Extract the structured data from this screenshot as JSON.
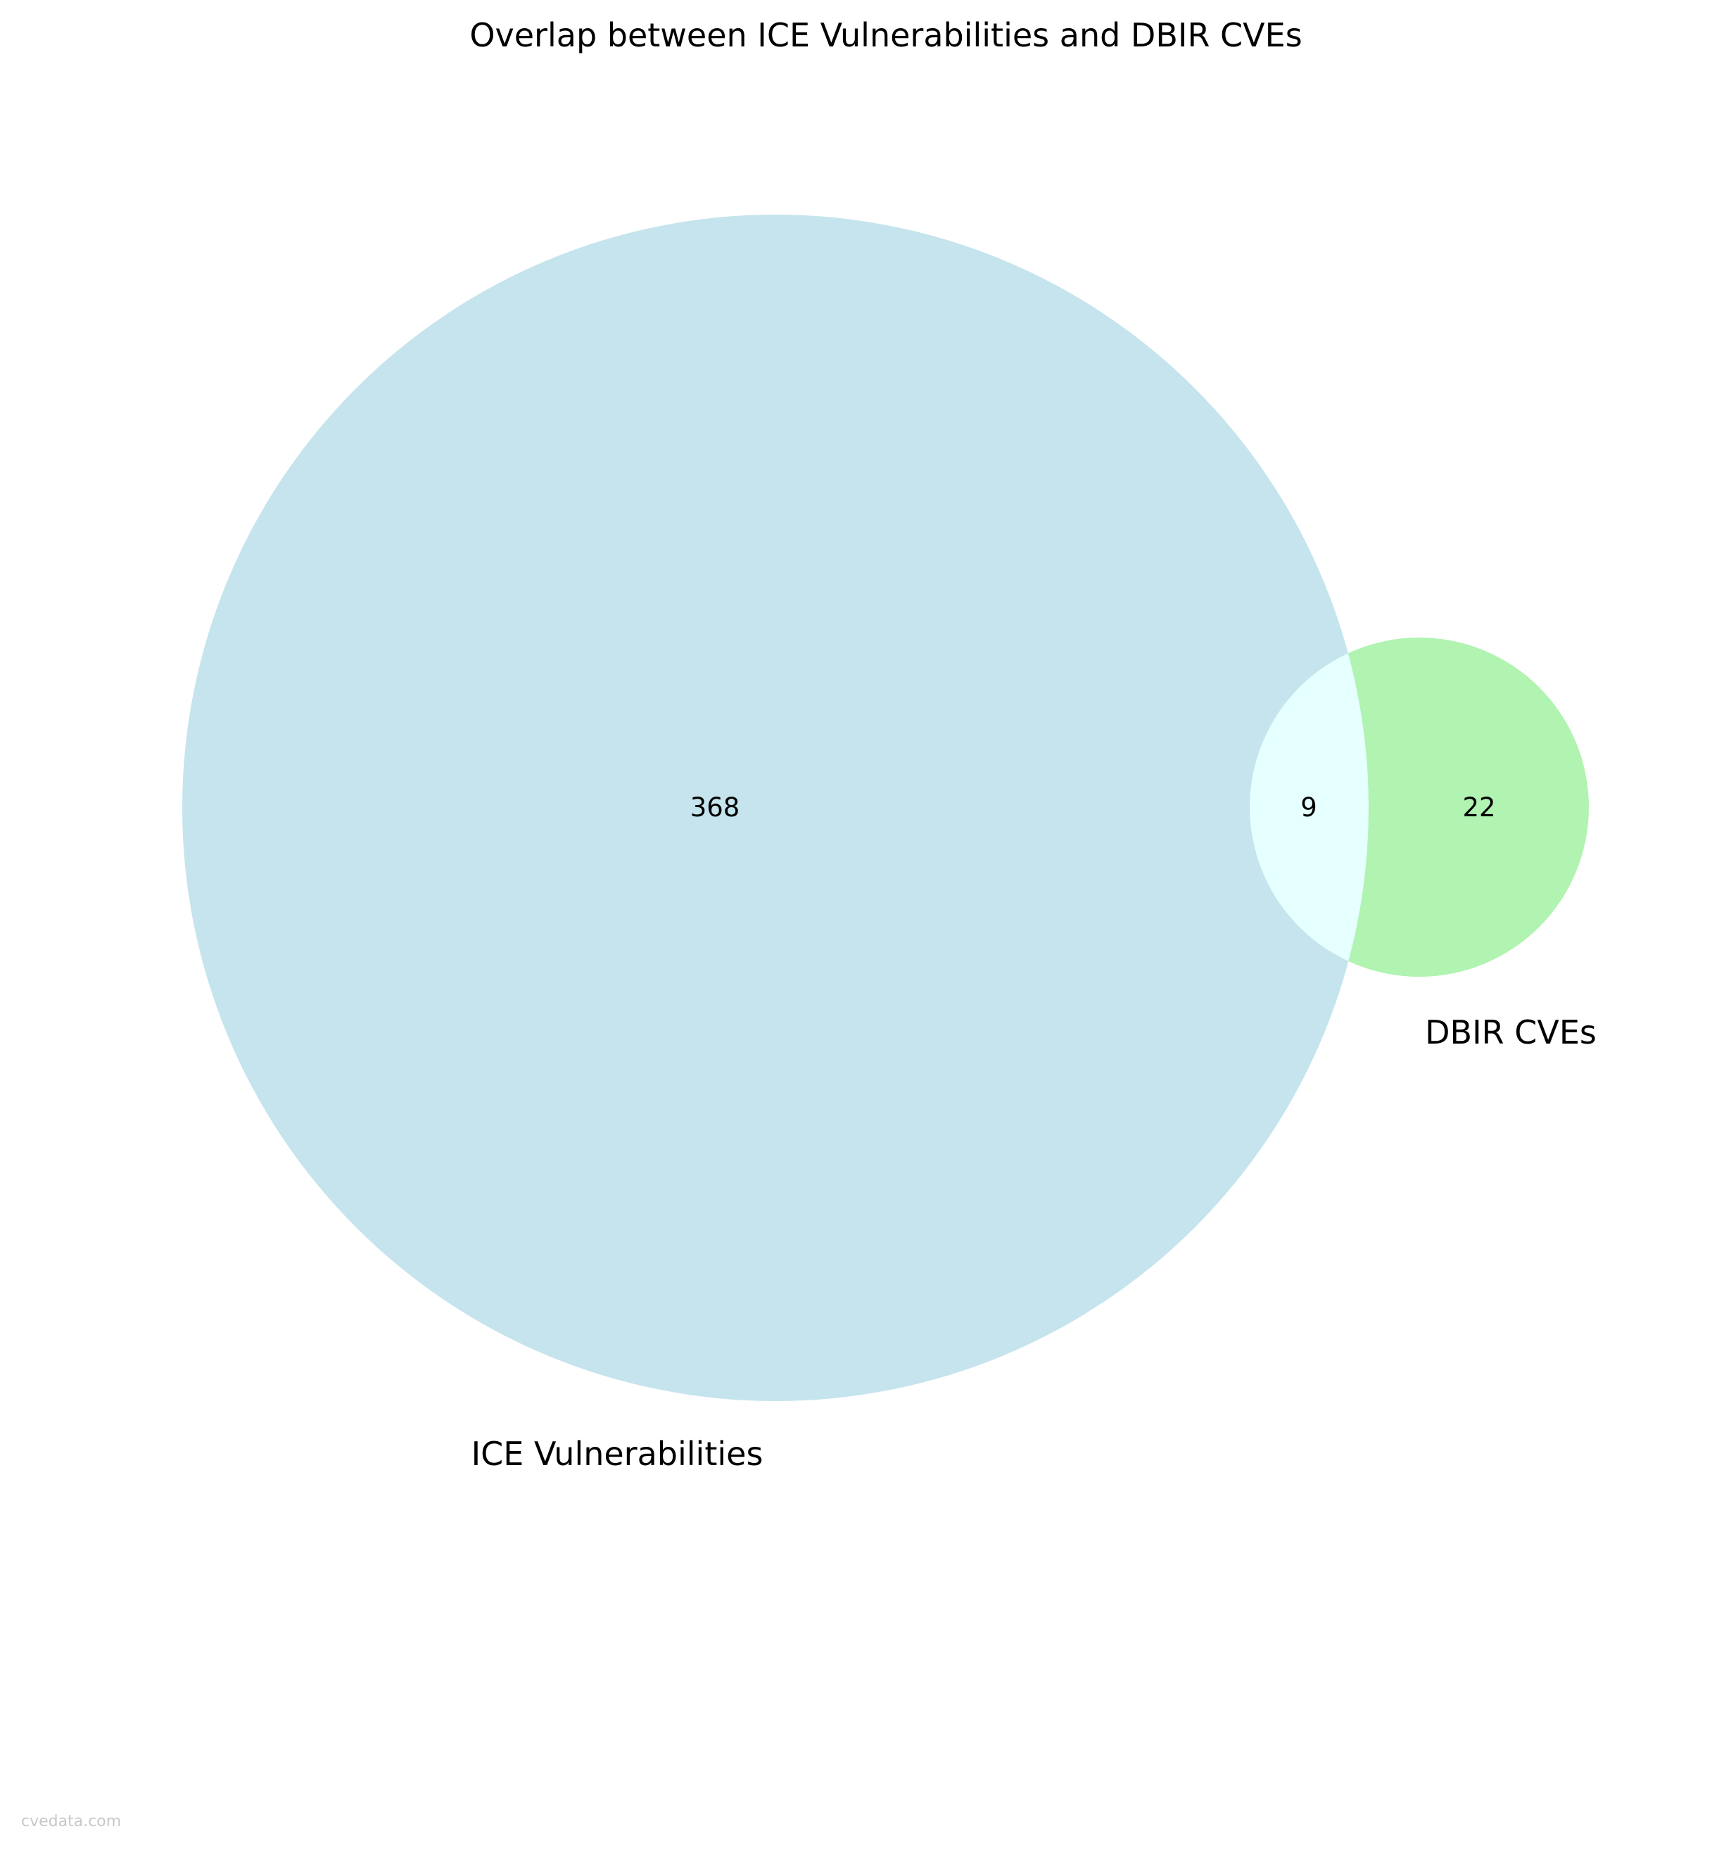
{
  "chart_data": {
    "type": "venn",
    "title": "Overlap between ICE Vulnerabilities and DBIR CVEs",
    "sets": [
      {
        "name": "ICE Vulnerabilities",
        "only_count": "368",
        "color": "#add8e6"
      },
      {
        "name": "DBIR CVEs",
        "only_count": "22",
        "color": "#90ee90"
      }
    ],
    "intersection": {
      "count": "9",
      "color": "#e6ffff"
    }
  },
  "watermark": "cvedata.com"
}
